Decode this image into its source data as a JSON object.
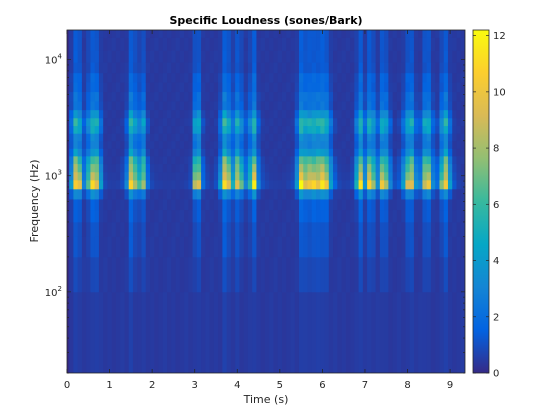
{
  "chart_data": {
    "type": "heatmap",
    "title": "Specific Loudness (sones/Bark)",
    "xlabel": "Time (s)",
    "ylabel": "Frequency (Hz)",
    "x_range": [
      0,
      9.35
    ],
    "y_range_hz": [
      20,
      18000
    ],
    "y_scale": "log",
    "x_ticks": [
      0,
      1,
      2,
      3,
      4,
      5,
      6,
      7,
      8,
      9
    ],
    "x_tick_labels": [
      "0",
      "1",
      "2",
      "3",
      "4",
      "5",
      "6",
      "7",
      "8",
      "9"
    ],
    "y_ticks": [
      {
        "value": 100,
        "base": "10",
        "exp": "2"
      },
      {
        "value": 1000,
        "base": "10",
        "exp": "3"
      },
      {
        "value": 10000,
        "base": "10",
        "exp": "4"
      }
    ],
    "colorbar": {
      "range": [
        0,
        12.2
      ],
      "ticks": [
        0,
        2,
        4,
        6,
        8,
        10,
        12
      ],
      "tick_labels": [
        "0",
        "2",
        "4",
        "6",
        "8",
        "10",
        "12"
      ],
      "colormap": "parula"
    },
    "band_edges_hz": [
      20,
      100,
      200,
      300,
      400,
      510,
      630,
      770,
      920,
      1080,
      1270,
      1480,
      1720,
      2000,
      2320,
      2700,
      3150,
      3700,
      4400,
      5300,
      6400,
      7700,
      9500,
      12000,
      15500,
      18000
    ],
    "time_columns": [
      {
        "t": 0.1,
        "l": 4.0
      },
      {
        "t": 0.2,
        "l": 11.0
      },
      {
        "t": 0.3,
        "l": 9.0
      },
      {
        "t": 0.4,
        "l": 3.0
      },
      {
        "t": 0.5,
        "l": 6.5
      },
      {
        "t": 0.6,
        "l": 10.5
      },
      {
        "t": 0.7,
        "l": 10.0
      },
      {
        "t": 0.8,
        "l": 4.0
      },
      {
        "t": 0.9,
        "l": 0.8
      },
      {
        "t": 1.0,
        "l": 0.6
      },
      {
        "t": 1.1,
        "l": 0.5
      },
      {
        "t": 1.2,
        "l": 0.6
      },
      {
        "t": 1.3,
        "l": 1.0
      },
      {
        "t": 1.4,
        "l": 3.0
      },
      {
        "t": 1.5,
        "l": 11.5
      },
      {
        "t": 1.6,
        "l": 8.0
      },
      {
        "t": 1.7,
        "l": 6.0
      },
      {
        "t": 1.8,
        "l": 8.5
      },
      {
        "t": 1.9,
        "l": 2.0
      },
      {
        "t": 2.0,
        "l": 0.8
      },
      {
        "t": 2.1,
        "l": 0.6
      },
      {
        "t": 2.2,
        "l": 0.5
      },
      {
        "t": 2.3,
        "l": 0.5
      },
      {
        "t": 2.4,
        "l": 0.5
      },
      {
        "t": 2.5,
        "l": 0.5
      },
      {
        "t": 2.6,
        "l": 0.5
      },
      {
        "t": 2.7,
        "l": 0.5
      },
      {
        "t": 2.8,
        "l": 0.6
      },
      {
        "t": 2.9,
        "l": 1.0
      },
      {
        "t": 3.0,
        "l": 8.0
      },
      {
        "t": 3.1,
        "l": 9.5
      },
      {
        "t": 3.2,
        "l": 2.0
      },
      {
        "t": 3.3,
        "l": 0.8
      },
      {
        "t": 3.4,
        "l": 0.6
      },
      {
        "t": 3.5,
        "l": 1.0
      },
      {
        "t": 3.6,
        "l": 4.0
      },
      {
        "t": 3.7,
        "l": 12.0
      },
      {
        "t": 3.8,
        "l": 9.0
      },
      {
        "t": 3.9,
        "l": 5.0
      },
      {
        "t": 4.0,
        "l": 10.0
      },
      {
        "t": 4.1,
        "l": 6.5
      },
      {
        "t": 4.2,
        "l": 3.0
      },
      {
        "t": 4.3,
        "l": 6.0
      },
      {
        "t": 4.4,
        "l": 11.0
      },
      {
        "t": 4.5,
        "l": 3.0
      },
      {
        "t": 4.6,
        "l": 1.0
      },
      {
        "t": 4.7,
        "l": 0.7
      },
      {
        "t": 4.8,
        "l": 0.6
      },
      {
        "t": 4.9,
        "l": 0.5
      },
      {
        "t": 5.0,
        "l": 0.5
      },
      {
        "t": 5.1,
        "l": 0.5
      },
      {
        "t": 5.2,
        "l": 0.6
      },
      {
        "t": 5.3,
        "l": 1.0
      },
      {
        "t": 5.4,
        "l": 4.0
      },
      {
        "t": 5.5,
        "l": 11.5
      },
      {
        "t": 5.6,
        "l": 10.0
      },
      {
        "t": 5.7,
        "l": 10.0
      },
      {
        "t": 5.8,
        "l": 10.5
      },
      {
        "t": 5.9,
        "l": 10.5
      },
      {
        "t": 6.0,
        "l": 11.0
      },
      {
        "t": 6.1,
        "l": 10.0
      },
      {
        "t": 6.2,
        "l": 4.5
      },
      {
        "t": 6.3,
        "l": 1.5
      },
      {
        "t": 6.4,
        "l": 0.8
      },
      {
        "t": 6.5,
        "l": 0.6
      },
      {
        "t": 6.6,
        "l": 0.6
      },
      {
        "t": 6.7,
        "l": 1.0
      },
      {
        "t": 6.8,
        "l": 5.0
      },
      {
        "t": 6.9,
        "l": 11.0
      },
      {
        "t": 7.0,
        "l": 4.0
      },
      {
        "t": 7.1,
        "l": 10.0
      },
      {
        "t": 7.2,
        "l": 8.0
      },
      {
        "t": 7.3,
        "l": 3.5
      },
      {
        "t": 7.4,
        "l": 9.5
      },
      {
        "t": 7.5,
        "l": 8.5
      },
      {
        "t": 7.6,
        "l": 3.0
      },
      {
        "t": 7.7,
        "l": 1.0
      },
      {
        "t": 7.8,
        "l": 1.5
      },
      {
        "t": 7.9,
        "l": 4.0
      },
      {
        "t": 8.0,
        "l": 9.0
      },
      {
        "t": 8.1,
        "l": 10.0
      },
      {
        "t": 8.2,
        "l": 3.5
      },
      {
        "t": 8.3,
        "l": 3.0
      },
      {
        "t": 8.4,
        "l": 9.0
      },
      {
        "t": 8.5,
        "l": 9.5
      },
      {
        "t": 8.6,
        "l": 3.5
      },
      {
        "t": 8.7,
        "l": 2.0
      },
      {
        "t": 8.8,
        "l": 7.0
      },
      {
        "t": 8.9,
        "l": 11.0
      },
      {
        "t": 9.0,
        "l": 4.0
      },
      {
        "t": 9.1,
        "l": 1.2
      },
      {
        "t": 9.2,
        "l": 0.7
      },
      {
        "t": 9.3,
        "l": 0.5
      }
    ]
  }
}
